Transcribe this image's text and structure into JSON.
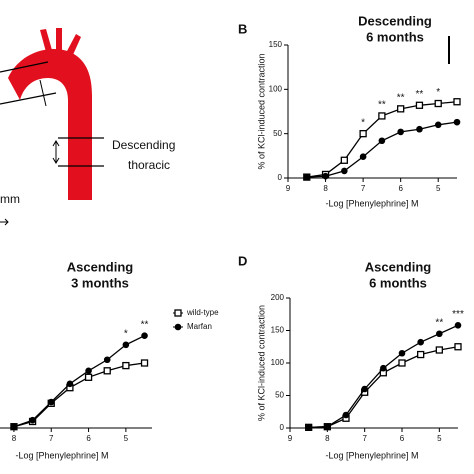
{
  "diagram": {
    "labels": [
      "Descending",
      "thoracic",
      "mm"
    ]
  },
  "chart_data": [
    {
      "type": "line",
      "panel": "B",
      "title": "Descending",
      "subtitle": "6 months",
      "x_label": "-Log [Phenylephrine] M",
      "y_label": "% of KCl-induced contraction",
      "xlim": [
        9,
        4.5
      ],
      "xticks": [
        9,
        8,
        7,
        6,
        5
      ],
      "ylim": [
        0,
        150
      ],
      "yticks": [
        0,
        50,
        100,
        150
      ],
      "series": [
        {
          "name": "wild-type",
          "marker": "square-open",
          "color": "#000000",
          "x": [
            8.5,
            8,
            7.5,
            7,
            6.5,
            6,
            5.5,
            5,
            4.5
          ],
          "values": [
            1,
            4,
            20,
            50,
            70,
            78,
            82,
            84,
            86
          ]
        },
        {
          "name": "Marfan",
          "marker": "circle",
          "color": "#000000",
          "x": [
            8.5,
            8,
            7.5,
            7,
            6.5,
            6,
            5.5,
            5,
            4.5
          ],
          "values": [
            1,
            2,
            8,
            24,
            42,
            52,
            55,
            60,
            63
          ]
        }
      ],
      "annotations": [
        {
          "x": 7,
          "text": "*"
        },
        {
          "x": 6.5,
          "text": "**"
        },
        {
          "x": 6,
          "text": "**"
        },
        {
          "x": 5.5,
          "text": "**"
        },
        {
          "x": 5,
          "text": "*"
        }
      ]
    },
    {
      "type": "line",
      "title": "Ascending",
      "subtitle": "3 months",
      "x_label": "-Log [Phenylephrine] M",
      "xlim": [
        8.4,
        4.3
      ],
      "xticks": [
        8,
        7,
        6,
        5
      ],
      "ylim": [
        0,
        200
      ],
      "legend": "right",
      "series": [
        {
          "name": "wild-type",
          "marker": "square-open",
          "color": "#000000",
          "x": [
            8,
            7.5,
            7,
            6.5,
            6,
            5.5,
            5,
            4.5
          ],
          "values": [
            2,
            10,
            38,
            62,
            78,
            88,
            96,
            100
          ]
        },
        {
          "name": "Marfan",
          "marker": "circle",
          "color": "#000000",
          "x": [
            8,
            7.5,
            7,
            6.5,
            6,
            5.5,
            5,
            4.5
          ],
          "values": [
            2,
            12,
            40,
            68,
            88,
            105,
            128,
            142
          ]
        }
      ],
      "annotations": [
        {
          "x": 5,
          "text": "*"
        },
        {
          "x": 4.5,
          "text": "**"
        }
      ]
    },
    {
      "type": "line",
      "panel": "D",
      "title": "Ascending",
      "subtitle": "6 months",
      "x_label": "-Log [Phenylephrine] M",
      "y_label": "% of KCl-induced contraction",
      "xlim": [
        9,
        4.5
      ],
      "xticks": [
        9,
        8,
        7,
        6,
        5
      ],
      "ylim": [
        0,
        200
      ],
      "yticks": [
        0,
        50,
        100,
        150,
        200
      ],
      "series": [
        {
          "name": "wild-type",
          "marker": "square-open",
          "color": "#000000",
          "x": [
            8.5,
            8,
            7.5,
            7,
            6.5,
            6,
            5.5,
            5,
            4.5
          ],
          "values": [
            1,
            2,
            15,
            55,
            85,
            100,
            113,
            120,
            125
          ]
        },
        {
          "name": "Marfan",
          "marker": "circle",
          "color": "#000000",
          "x": [
            8.5,
            8,
            7.5,
            7,
            6.5,
            6,
            5.5,
            5,
            4.5
          ],
          "values": [
            1,
            2,
            20,
            60,
            92,
            115,
            132,
            145,
            158
          ]
        }
      ],
      "annotations": [
        {
          "x": 5,
          "text": "**"
        },
        {
          "x": 4.5,
          "text": "***"
        }
      ]
    }
  ]
}
